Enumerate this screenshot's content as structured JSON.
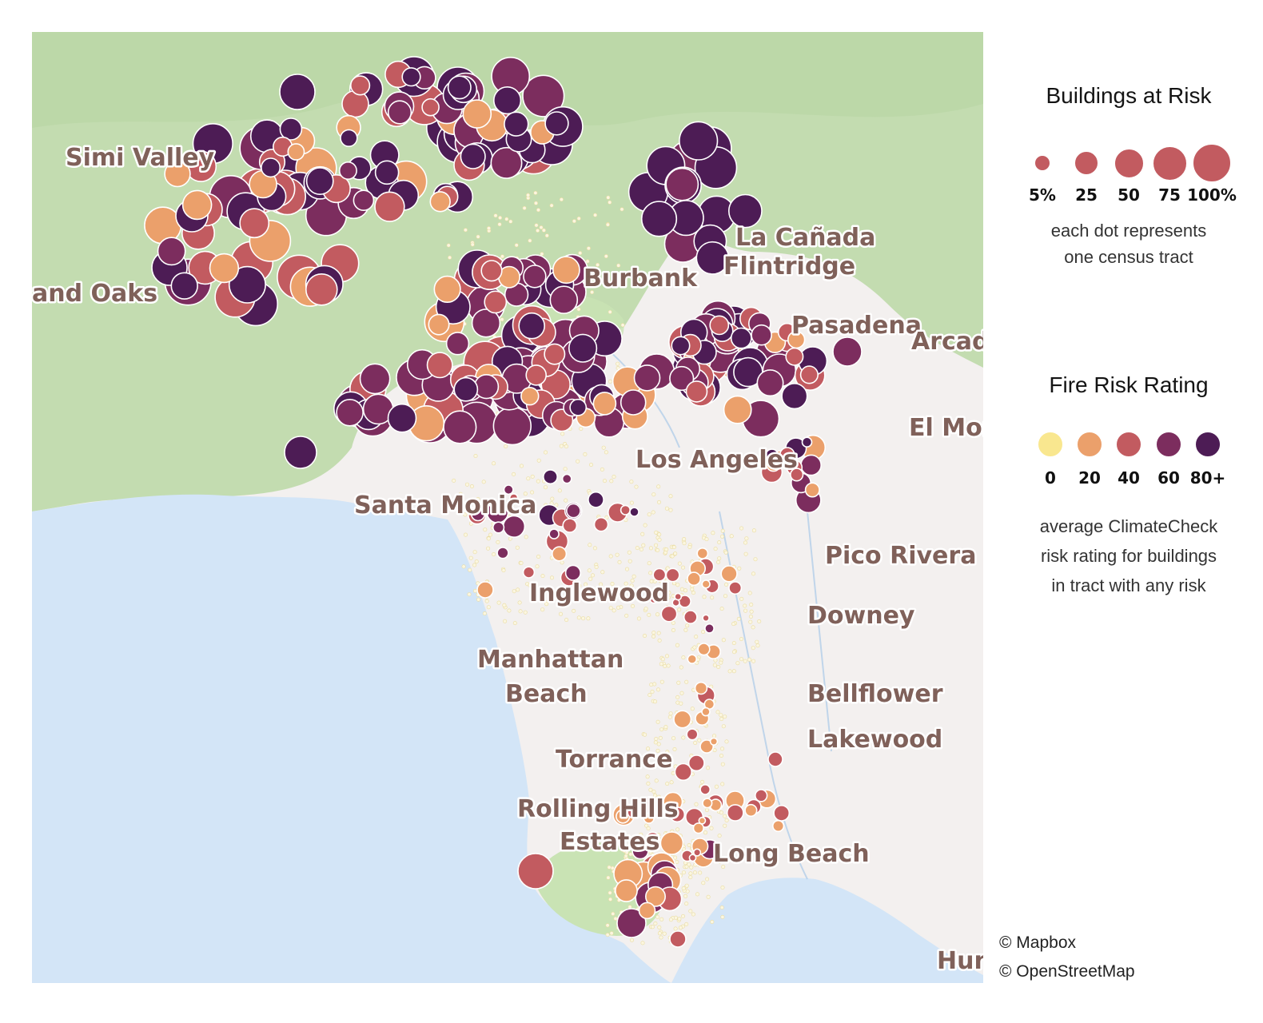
{
  "map": {
    "places": [
      {
        "name": "Simi Valley"
      },
      {
        "name": "and Oaks"
      },
      {
        "name": "Burbank"
      },
      {
        "name": "La Cañada"
      },
      {
        "name": "Flintridge"
      },
      {
        "name": "Pasadena"
      },
      {
        "name": "Arcad"
      },
      {
        "name": "El Mor"
      },
      {
        "name": "Los Angeles"
      },
      {
        "name": "Santa Monica"
      },
      {
        "name": "Pico Rivera"
      },
      {
        "name": "Inglewood"
      },
      {
        "name": "Downey"
      },
      {
        "name": "Manhattan"
      },
      {
        "name": "Beach"
      },
      {
        "name": "Bellflower"
      },
      {
        "name": "Lakewood"
      },
      {
        "name": "Torrance"
      },
      {
        "name": "Rolling Hills"
      },
      {
        "name": "Estates"
      },
      {
        "name": "Long Beach"
      },
      {
        "name": "Hun"
      }
    ],
    "colors": {
      "land": "#f3f0ef",
      "water": "#d3e5f7",
      "forest": "#c3dcb0",
      "park": "#c9e3b4",
      "tract_dot": "#fbf6e0"
    }
  },
  "legend": {
    "size": {
      "title": "Buildings at Risk",
      "ticks": [
        "5%",
        "25",
        "50",
        "75",
        "100%"
      ],
      "values": [
        5,
        25,
        50,
        75,
        100
      ],
      "note_lines": [
        "each dot represents",
        "one census tract"
      ],
      "color": "#c25b60"
    },
    "risk": {
      "title": "Fire Risk Rating",
      "ticks": [
        "0",
        "20",
        "40",
        "60",
        "80+"
      ],
      "values": [
        0,
        20,
        40,
        60,
        80
      ],
      "colors": [
        "#f9e78f",
        "#eba06b",
        "#c25b60",
        "#7c2d5e",
        "#4d1c55"
      ],
      "note_lines": [
        "average ClimateCheck",
        "risk rating for buildings",
        "in tract with any risk"
      ]
    }
  },
  "attribution": {
    "mapbox": "© Mapbox",
    "osm": "© OpenStreetMap"
  }
}
